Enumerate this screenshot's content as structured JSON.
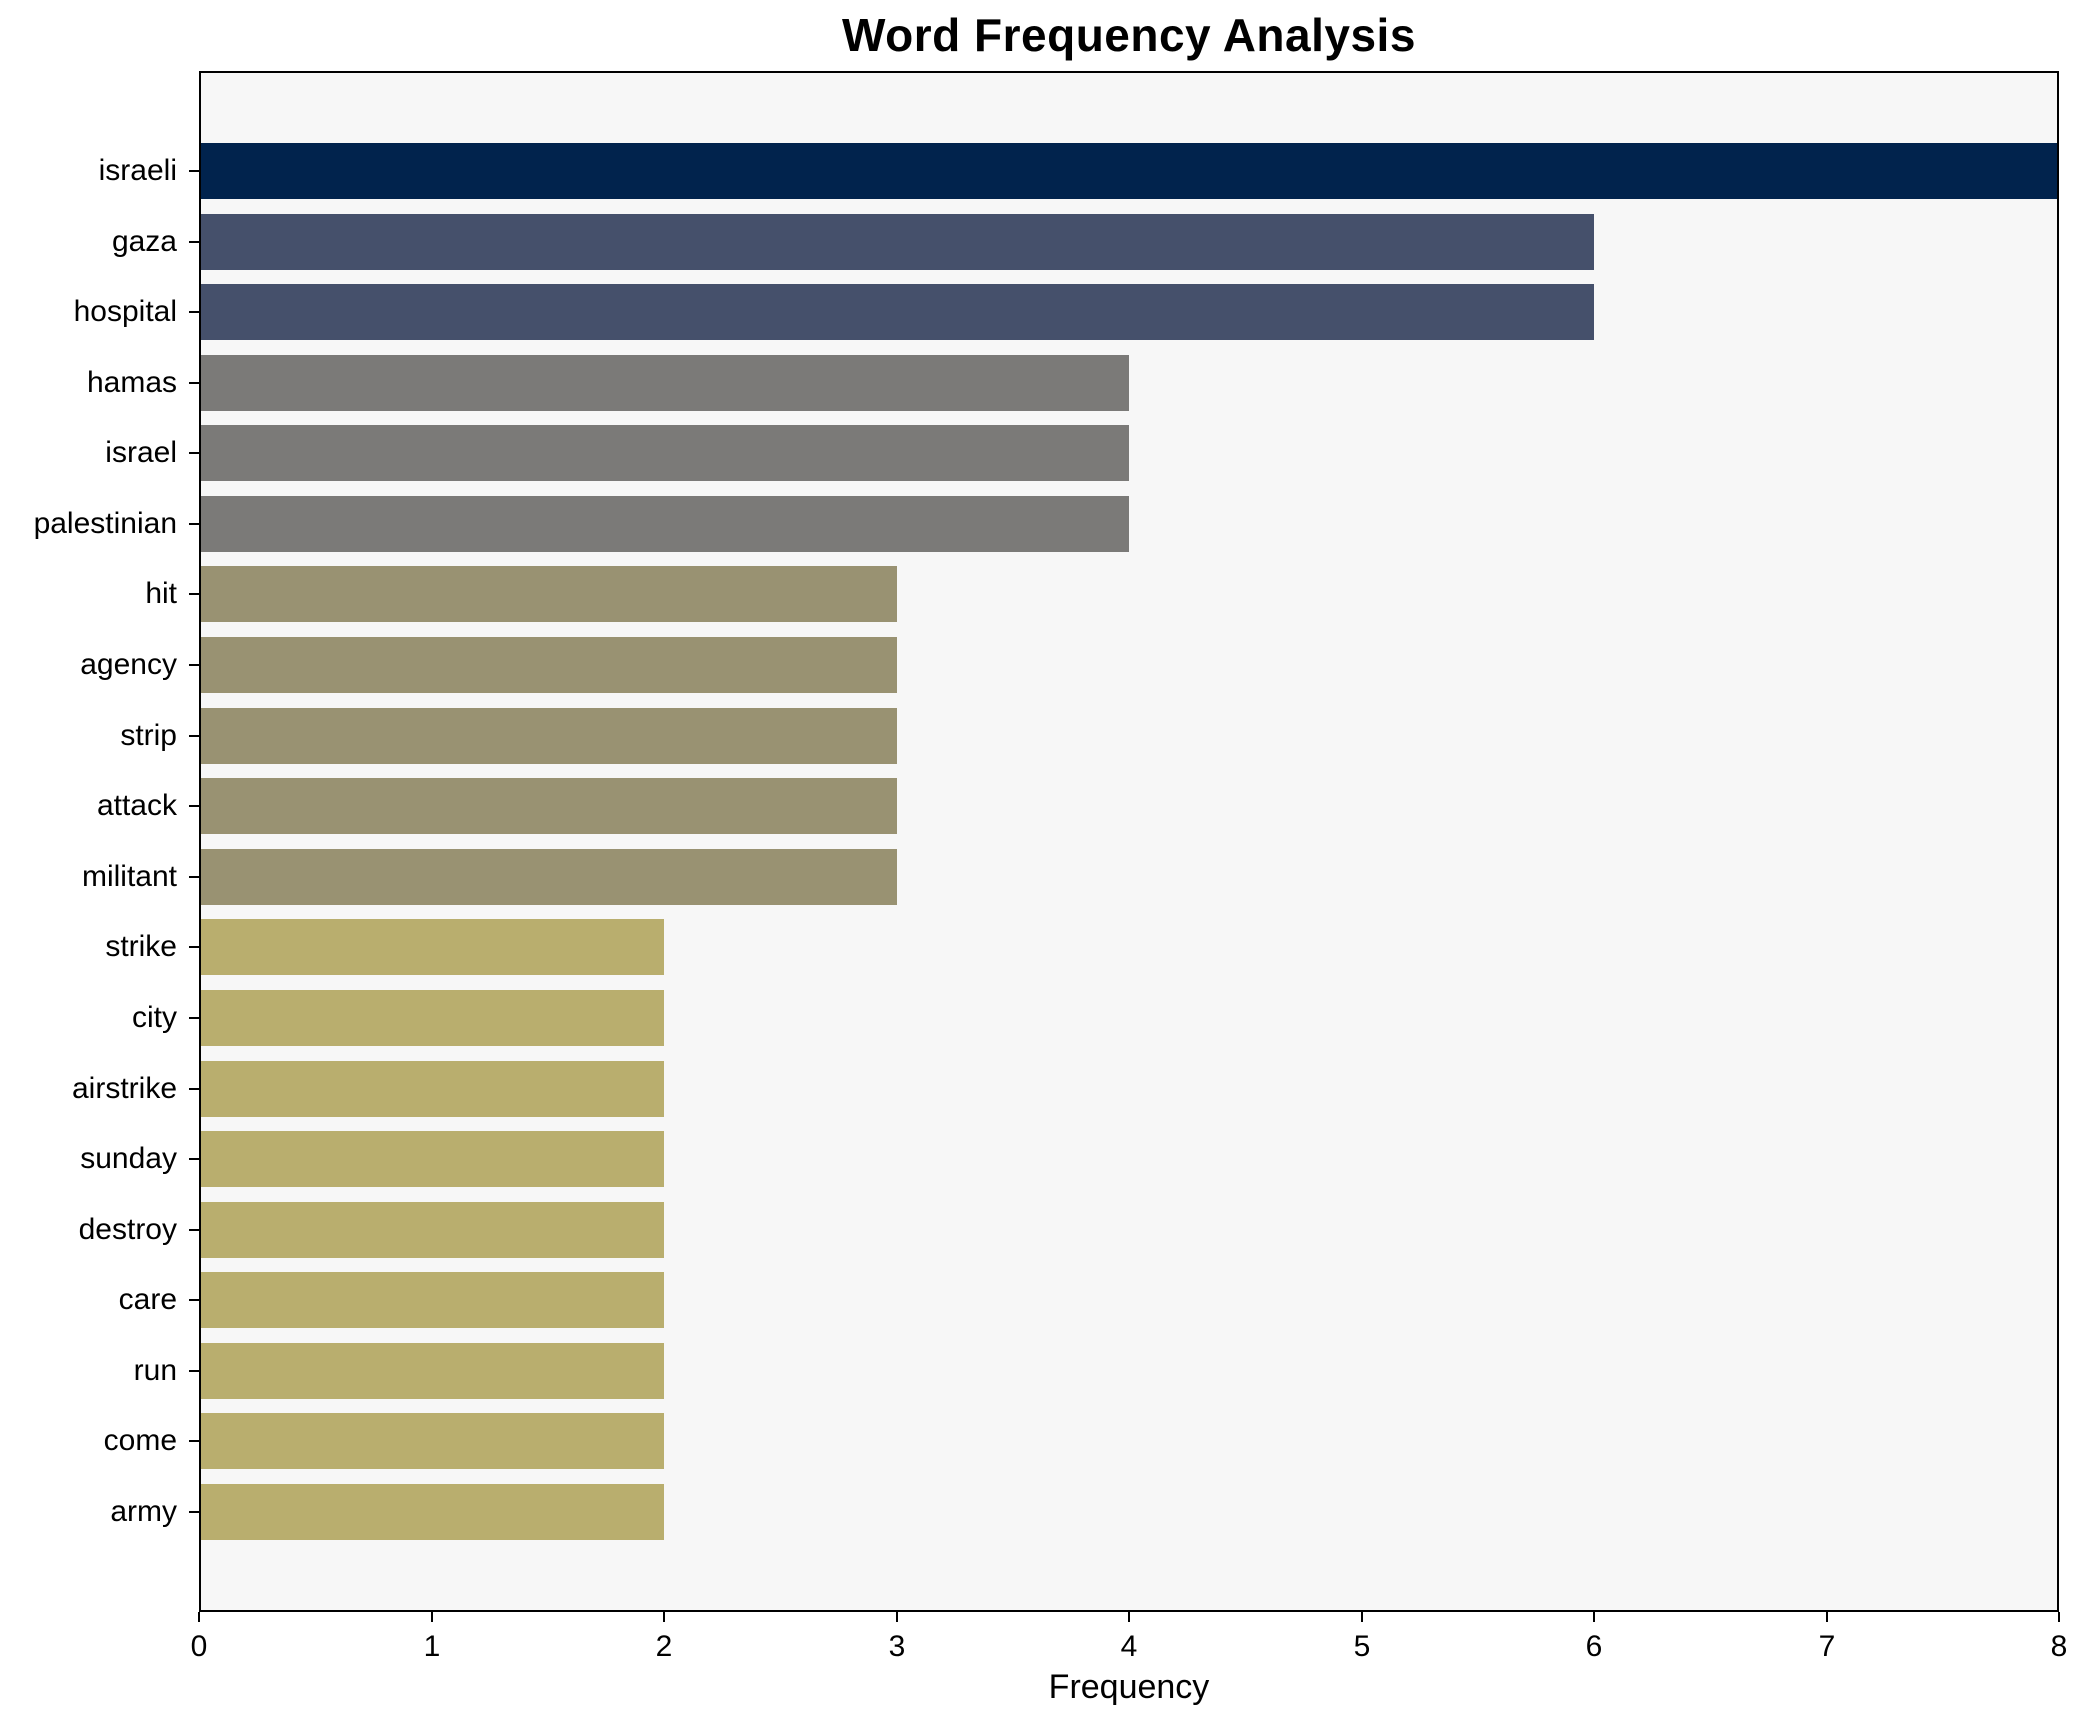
{
  "chart_data": {
    "type": "bar",
    "orientation": "horizontal",
    "title": "Word Frequency Analysis",
    "xlabel": "Frequency",
    "ylabel": "",
    "categories": [
      "israeli",
      "gaza",
      "hospital",
      "hamas",
      "israel",
      "palestinian",
      "hit",
      "agency",
      "strip",
      "attack",
      "militant",
      "strike",
      "city",
      "airstrike",
      "sunday",
      "destroy",
      "care",
      "run",
      "come",
      "army"
    ],
    "values": [
      8,
      6,
      6,
      4,
      4,
      4,
      3,
      3,
      3,
      3,
      3,
      2,
      2,
      2,
      2,
      2,
      2,
      2,
      2,
      2
    ],
    "bar_colors": [
      "#01234d",
      "#45506b",
      "#45506b",
      "#7b7a78",
      "#7b7a78",
      "#7b7a78",
      "#999272",
      "#999272",
      "#999272",
      "#999272",
      "#999272",
      "#b9ae6e",
      "#b9ae6e",
      "#b9ae6e",
      "#b9ae6e",
      "#b9ae6e",
      "#b9ae6e",
      "#b9ae6e",
      "#b9ae6e",
      "#b9ae6e"
    ],
    "value_color_map": {
      "8": "#01234d",
      "6": "#45506b",
      "4": "#7b7a78",
      "3": "#999272",
      "2": "#b9ae6e"
    },
    "xlim": [
      0,
      8
    ],
    "xticks": [
      0,
      1,
      2,
      3,
      4,
      5,
      6,
      7,
      8
    ],
    "grid": false,
    "legend_position": "none",
    "plot_background": "#f7f7f7",
    "figure_background": "#ffffff",
    "axis_color": "#000000"
  }
}
